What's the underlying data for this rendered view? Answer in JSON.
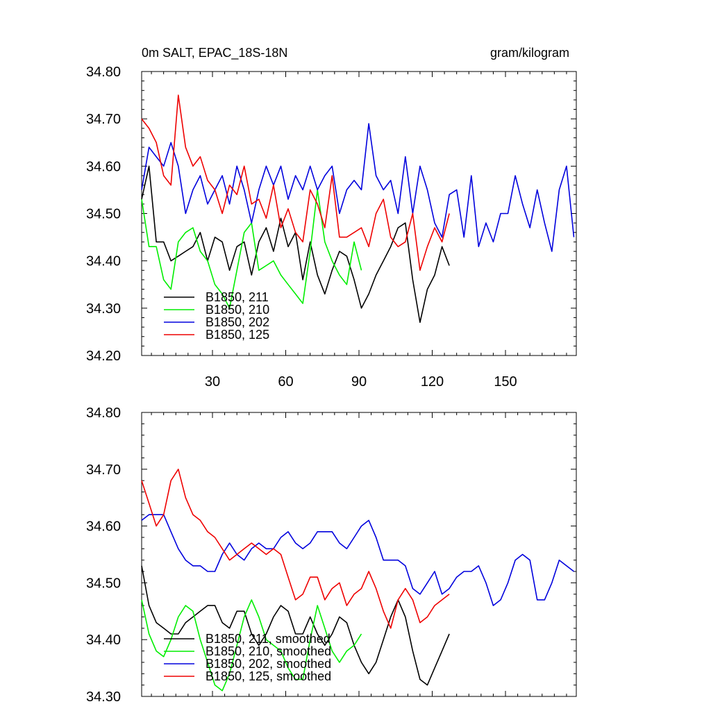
{
  "title_left": "0m SALT, EPAC_18S-18N",
  "title_right": "gram/kilogram",
  "colors": {
    "black": "#000000",
    "green": "#00ee00",
    "blue": "#0000dd",
    "red": "#ee0000"
  },
  "chart_data": [
    {
      "type": "line",
      "title": "0m SALT, EPAC_18S-18N",
      "units": "gram/kilogram",
      "xlim": [
        1,
        179
      ],
      "ylim": [
        34.2,
        34.8
      ],
      "xticks": [
        30,
        60,
        90,
        120,
        150
      ],
      "xtick_labels": [
        "30",
        "60",
        "90",
        "120",
        "150"
      ],
      "yticks": [
        34.2,
        34.3,
        34.4,
        34.5,
        34.6,
        34.7,
        34.8
      ],
      "ytick_labels": [
        "34.20",
        "34.30",
        "34.40",
        "34.50",
        "34.60",
        "34.70",
        "34.80"
      ],
      "legend_position": "bottom-left",
      "series": [
        {
          "name": "B1850, 211",
          "color": "#000000",
          "x": [
            1,
            4,
            7,
            10,
            13,
            16,
            19,
            22,
            25,
            28,
            31,
            34,
            37,
            40,
            43,
            46,
            49,
            52,
            55,
            58,
            61,
            64,
            67,
            70,
            73,
            76,
            79,
            82,
            85,
            88,
            91,
            94,
            97,
            100,
            103,
            106,
            109,
            112,
            115,
            118,
            121,
            124,
            127
          ],
          "values": [
            34.53,
            34.6,
            34.44,
            34.44,
            34.4,
            34.41,
            34.42,
            34.43,
            34.46,
            34.4,
            34.45,
            34.44,
            34.38,
            34.43,
            34.44,
            34.37,
            34.44,
            34.47,
            34.42,
            34.49,
            34.43,
            34.46,
            34.36,
            34.44,
            34.37,
            34.33,
            34.38,
            34.42,
            34.41,
            34.36,
            34.3,
            34.33,
            34.37,
            34.4,
            34.43,
            34.47,
            34.48,
            34.36,
            34.27,
            34.34,
            34.37,
            34.43,
            34.39
          ]
        },
        {
          "name": "B1850, 210",
          "color": "#00ee00",
          "x": [
            1,
            4,
            7,
            10,
            13,
            16,
            19,
            22,
            25,
            28,
            31,
            34,
            37,
            40,
            43,
            46,
            49,
            52,
            55,
            58,
            61,
            64,
            67,
            70,
            73,
            76,
            79,
            82,
            85,
            88,
            91
          ],
          "values": [
            34.53,
            34.43,
            34.43,
            34.36,
            34.34,
            34.44,
            34.46,
            34.47,
            34.42,
            34.4,
            34.35,
            34.33,
            34.3,
            34.38,
            34.46,
            34.48,
            34.38,
            34.39,
            34.4,
            34.37,
            34.35,
            34.33,
            34.31,
            34.42,
            34.55,
            34.44,
            34.4,
            34.37,
            34.35,
            34.44,
            34.38
          ]
        },
        {
          "name": "B1850, 202",
          "color": "#0000dd",
          "x": [
            1,
            4,
            7,
            10,
            13,
            16,
            19,
            22,
            25,
            28,
            31,
            34,
            37,
            40,
            43,
            46,
            49,
            52,
            55,
            58,
            61,
            64,
            67,
            70,
            73,
            76,
            79,
            82,
            85,
            88,
            91,
            94,
            97,
            100,
            103,
            106,
            109,
            112,
            115,
            118,
            121,
            124,
            127,
            130,
            133,
            136,
            139,
            142,
            145,
            148,
            151,
            154,
            157,
            160,
            163,
            166,
            169,
            172,
            175,
            178
          ],
          "values": [
            34.55,
            34.64,
            34.62,
            34.6,
            34.65,
            34.6,
            34.5,
            34.55,
            34.58,
            34.52,
            34.55,
            34.58,
            34.52,
            34.6,
            34.55,
            34.48,
            34.55,
            34.6,
            34.56,
            34.6,
            34.53,
            34.58,
            34.55,
            34.6,
            34.55,
            34.58,
            34.6,
            34.5,
            34.55,
            34.57,
            34.55,
            34.69,
            34.58,
            34.55,
            34.57,
            34.5,
            34.62,
            34.5,
            34.6,
            34.55,
            34.48,
            34.45,
            34.54,
            34.55,
            34.45,
            34.58,
            34.43,
            34.48,
            34.44,
            34.5,
            34.5,
            34.58,
            34.52,
            34.47,
            34.55,
            34.48,
            34.42,
            34.55,
            34.6,
            34.45
          ]
        },
        {
          "name": "B1850, 125",
          "color": "#ee0000",
          "x": [
            1,
            4,
            7,
            10,
            13,
            16,
            19,
            22,
            25,
            28,
            31,
            34,
            37,
            40,
            43,
            46,
            49,
            52,
            55,
            58,
            61,
            64,
            67,
            70,
            73,
            76,
            79,
            82,
            85,
            88,
            91,
            94,
            97,
            100,
            103,
            106,
            109,
            112,
            115,
            118,
            121,
            124,
            127
          ],
          "values": [
            34.7,
            34.68,
            34.65,
            34.58,
            34.56,
            34.75,
            34.64,
            34.6,
            34.62,
            34.57,
            34.55,
            34.5,
            34.56,
            34.54,
            34.6,
            34.52,
            34.53,
            34.49,
            34.56,
            34.47,
            34.51,
            34.46,
            34.44,
            34.55,
            34.52,
            34.47,
            34.58,
            34.45,
            34.45,
            34.46,
            34.47,
            34.43,
            34.5,
            34.53,
            34.45,
            34.43,
            34.44,
            34.5,
            34.38,
            34.43,
            34.47,
            34.44,
            34.5
          ]
        }
      ]
    },
    {
      "type": "line",
      "xlim": [
        1,
        179
      ],
      "ylim": [
        34.3,
        34.8
      ],
      "xticks": [
        30,
        60,
        90,
        120,
        150
      ],
      "yticks": [
        34.3,
        34.4,
        34.5,
        34.6,
        34.7,
        34.8
      ],
      "ytick_labels": [
        "34.30",
        "34.40",
        "34.50",
        "34.60",
        "34.70",
        "34.80"
      ],
      "legend_position": "bottom-left",
      "series": [
        {
          "name": "B1850, 211, smoothed",
          "color": "#000000",
          "x": [
            1,
            4,
            7,
            10,
            13,
            16,
            19,
            22,
            25,
            28,
            31,
            34,
            37,
            40,
            43,
            46,
            49,
            52,
            55,
            58,
            61,
            64,
            67,
            70,
            73,
            76,
            79,
            82,
            85,
            88,
            91,
            94,
            97,
            100,
            103,
            106,
            109,
            112,
            115,
            118,
            121,
            124,
            127
          ],
          "values": [
            34.53,
            34.46,
            34.43,
            34.42,
            34.41,
            34.41,
            34.43,
            34.44,
            34.45,
            34.46,
            34.46,
            34.43,
            34.42,
            34.45,
            34.45,
            34.41,
            34.39,
            34.41,
            34.44,
            34.46,
            34.45,
            34.41,
            34.41,
            34.44,
            34.41,
            34.39,
            34.41,
            34.44,
            34.43,
            34.39,
            34.36,
            34.34,
            34.36,
            34.4,
            34.44,
            34.47,
            34.44,
            34.38,
            34.33,
            34.32,
            34.35,
            34.38,
            34.41
          ]
        },
        {
          "name": "B1850, 210, smoothed",
          "color": "#00ee00",
          "x": [
            1,
            4,
            7,
            10,
            13,
            16,
            19,
            22,
            25,
            28,
            31,
            34,
            37,
            40,
            43,
            46,
            49,
            52,
            55,
            58,
            61,
            64,
            67,
            70,
            73,
            76,
            79,
            82,
            85,
            88,
            91
          ],
          "values": [
            34.47,
            34.41,
            34.38,
            34.37,
            34.4,
            34.44,
            34.46,
            34.45,
            34.4,
            34.36,
            34.32,
            34.31,
            34.34,
            34.39,
            34.44,
            34.47,
            34.44,
            34.4,
            34.39,
            34.38,
            34.35,
            34.33,
            34.33,
            34.4,
            34.46,
            34.42,
            34.38,
            34.36,
            34.38,
            34.39,
            34.41
          ]
        },
        {
          "name": "B1850, 202, smoothed",
          "color": "#0000dd",
          "x": [
            1,
            4,
            7,
            10,
            13,
            16,
            19,
            22,
            25,
            28,
            31,
            34,
            37,
            40,
            43,
            46,
            49,
            52,
            55,
            58,
            61,
            64,
            67,
            70,
            73,
            76,
            79,
            82,
            85,
            88,
            91,
            94,
            97,
            100,
            103,
            106,
            109,
            112,
            115,
            118,
            121,
            124,
            127,
            130,
            133,
            136,
            139,
            142,
            145,
            148,
            151,
            154,
            157,
            160,
            163,
            166,
            169,
            172,
            175,
            178
          ],
          "values": [
            34.61,
            34.62,
            34.62,
            34.62,
            34.59,
            34.56,
            34.54,
            34.53,
            34.53,
            34.52,
            34.52,
            34.55,
            34.57,
            34.55,
            34.54,
            34.56,
            34.57,
            34.56,
            34.56,
            34.58,
            34.59,
            34.57,
            34.56,
            34.57,
            34.59,
            34.59,
            34.59,
            34.57,
            34.56,
            34.58,
            34.6,
            34.61,
            34.58,
            34.54,
            34.54,
            34.54,
            34.53,
            34.49,
            34.48,
            34.5,
            34.52,
            34.48,
            34.49,
            34.51,
            34.52,
            34.52,
            34.53,
            34.5,
            34.46,
            34.47,
            34.5,
            34.54,
            34.55,
            34.54,
            34.47,
            34.47,
            34.5,
            34.54,
            34.53,
            34.52
          ]
        },
        {
          "name": "B1850, 125, smoothed",
          "color": "#ee0000",
          "x": [
            1,
            4,
            7,
            10,
            13,
            16,
            19,
            22,
            25,
            28,
            31,
            34,
            37,
            40,
            43,
            46,
            49,
            52,
            55,
            58,
            61,
            64,
            67,
            70,
            73,
            76,
            79,
            82,
            85,
            88,
            91,
            94,
            97,
            100,
            103,
            106,
            109,
            112,
            115,
            118,
            121,
            124,
            127
          ],
          "values": [
            34.68,
            34.64,
            34.6,
            34.62,
            34.68,
            34.7,
            34.65,
            34.62,
            34.61,
            34.59,
            34.58,
            34.56,
            34.54,
            34.55,
            34.56,
            34.57,
            34.56,
            34.55,
            34.56,
            34.55,
            34.51,
            34.47,
            34.48,
            34.51,
            34.51,
            34.47,
            34.49,
            34.5,
            34.46,
            34.48,
            34.49,
            34.52,
            34.49,
            34.45,
            34.42,
            34.47,
            34.49,
            34.47,
            34.43,
            34.44,
            34.46,
            34.47,
            34.48
          ]
        }
      ]
    }
  ]
}
